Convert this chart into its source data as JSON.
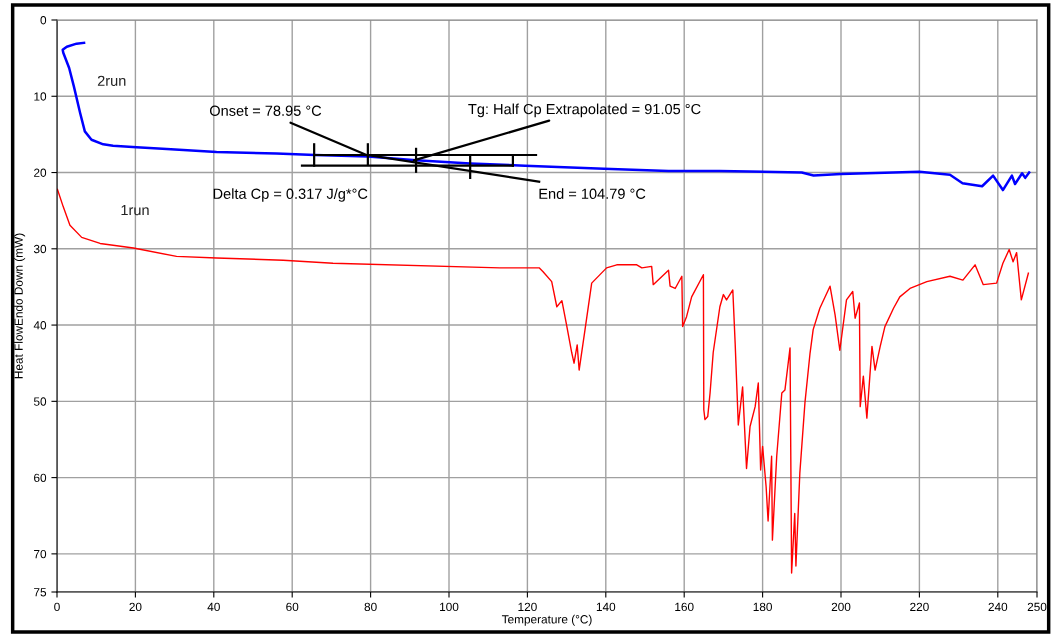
{
  "chart_data": {
    "type": "line",
    "xlabel": "Temperature (°C)",
    "ylabel": "Heat FlowEndo Down (mW)",
    "xlim": [
      0,
      250
    ],
    "xticks": [
      0,
      20,
      40,
      60,
      80,
      100,
      120,
      140,
      160,
      180,
      200,
      220,
      240,
      250
    ],
    "ylim": [
      75,
      0
    ],
    "yticks": [
      0,
      10,
      20,
      30,
      40,
      50,
      60,
      70,
      75
    ],
    "grid": true,
    "legend": false,
    "line_style": "solid",
    "marker": "none",
    "series": [
      {
        "name": "2run",
        "color": "#0000ff",
        "x": [
          6.9,
          5.0,
          2.5,
          1.45,
          1.6,
          3.1,
          4.3,
          5.9,
          7.1,
          8.8,
          11.8,
          14.3,
          20.3,
          28,
          40.7,
          56,
          65.8,
          79.3,
          91.6,
          105.4,
          119.4,
          139.5,
          156,
          169,
          190,
          193,
          200,
          220,
          227.8,
          231,
          236,
          238.8,
          241.3,
          243.6,
          244.4,
          246.2,
          247,
          248
        ],
        "values": [
          3.0,
          3.1,
          3.5,
          3.9,
          4.3,
          6.3,
          8.7,
          12.2,
          14.6,
          15.7,
          16.3,
          16.5,
          16.7,
          16.9,
          17.3,
          17.5,
          17.7,
          17.9,
          18.4,
          18.8,
          19.1,
          19.5,
          19.8,
          19.8,
          20.0,
          20.4,
          20.2,
          19.9,
          20.3,
          21.4,
          21.8,
          20.4,
          22.3,
          20.4,
          21.5,
          20.1,
          20.7,
          20.0
        ]
      },
      {
        "name": "1run",
        "color": "#ff0000",
        "x": [
          0.1,
          1.6,
          3.3,
          6.3,
          11,
          19.5,
          30.5,
          40.7,
          57.7,
          70.4,
          113,
          123,
          124,
          126.2,
          127.5,
          128.8,
          130,
          131.3,
          131.9,
          132.7,
          133.2,
          134.7,
          136.4,
          140.2,
          142.8,
          147.9,
          149.2,
          151.7,
          152.1,
          156,
          156.4,
          157.7,
          159.4,
          159.6,
          160.6,
          161.9,
          164.9,
          165,
          165.3,
          166,
          166.6,
          167.4,
          169.1,
          170,
          170.8,
          172.4,
          173,
          173.8,
          174.9,
          175.9,
          176.8,
          178.1,
          178.9,
          179.5,
          180,
          180.9,
          181.4,
          182.3,
          182.5,
          183.6,
          184.9,
          185.7,
          187,
          187.4,
          188.2,
          188.5,
          189.5,
          190.8,
          192.1,
          192.9,
          194.6,
          197.2,
          198.5,
          199.7,
          201.4,
          203,
          203.6,
          204.7,
          204.9,
          205.7,
          206.6,
          207.9,
          208.7,
          210,
          211.2,
          213.4,
          215,
          217.6,
          221.9,
          227.8,
          231.1,
          234.2,
          236.3,
          239.7,
          241.3,
          242.9,
          243.9,
          244.8,
          246,
          247.8
        ],
        "values": [
          22.2,
          24.5,
          26.9,
          28.5,
          29.3,
          29.9,
          31.0,
          31.2,
          31.5,
          31.9,
          32.5,
          32.5,
          33.0,
          34.3,
          37.6,
          36.8,
          40.0,
          43.6,
          45.0,
          42.6,
          45.9,
          40.6,
          34.5,
          32.5,
          32.1,
          32.1,
          32.5,
          32.3,
          34.7,
          32.8,
          34.9,
          35.2,
          33.6,
          40.2,
          38.9,
          36.3,
          33.4,
          51.1,
          52.4,
          52.0,
          48.9,
          43.6,
          37.6,
          36.0,
          36.7,
          35.4,
          42.4,
          53.1,
          48.1,
          58.8,
          53.3,
          50.7,
          47.6,
          59.0,
          55.9,
          61.2,
          65.7,
          57.2,
          68.2,
          57.2,
          48.9,
          48.5,
          43.0,
          72.5,
          64.7,
          71.6,
          59.4,
          50.2,
          43.7,
          40.6,
          37.8,
          34.9,
          38.7,
          43.3,
          36.7,
          35.6,
          39.1,
          37.1,
          50.7,
          46.7,
          52.2,
          42.8,
          45.9,
          42.8,
          40.2,
          37.8,
          36.3,
          35.2,
          34.3,
          33.6,
          34.1,
          32.1,
          34.7,
          34.5,
          31.9,
          30.1,
          31.7,
          30.5,
          36.7,
          33.2
        ]
      },
      {
        "color": "#000000",
        "x": [
          65.6,
          122.2
        ],
        "values": [
          17.7,
          17.7
        ]
      },
      {
        "color": "#000000",
        "x": [
          62.5,
          116.3
        ],
        "values": [
          19.1,
          19.1
        ]
      },
      {
        "color": "#000000",
        "x": [
          79.3,
          123
        ],
        "values": [
          17.7,
          21.2
        ]
      },
      {
        "color": "#000000",
        "x": [
          65.6,
          65.6
        ],
        "values": [
          16.3,
          19.1
        ]
      },
      {
        "color": "#000000",
        "x": [
          79.3,
          79.3
        ],
        "values": [
          16.3,
          18.9
        ]
      },
      {
        "color": "#000000",
        "x": [
          91.6,
          91.6
        ],
        "values": [
          16.9,
          19.9
        ]
      },
      {
        "color": "#000000",
        "x": [
          105.4,
          105.4
        ],
        "values": [
          17.8,
          20.7
        ]
      },
      {
        "color": "#000000",
        "x": [
          116.3,
          116.3
        ],
        "values": [
          17.8,
          19.1
        ]
      }
    ],
    "annotations": [
      {
        "text": "Onset = 78.95 °C",
        "x": 78.95,
        "y": 17.7
      },
      {
        "text": "Tg: Half Cp Extrapolated = 91.05 °C",
        "x": 91.05,
        "y": 18.4
      },
      "Delta Cp = 0.317 J/g*°C",
      "End = 104.79 °C"
    ]
  }
}
